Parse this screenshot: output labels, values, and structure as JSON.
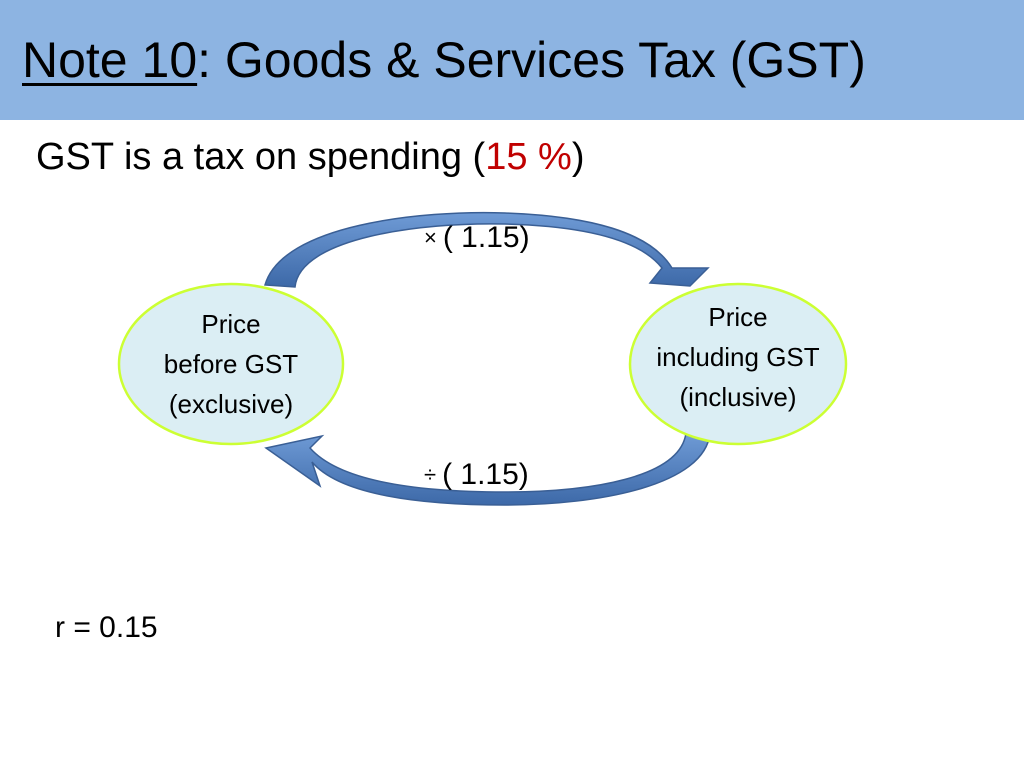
{
  "title": {
    "note": "Note 10",
    "rest": ": Goods & Services Tax (GST)"
  },
  "subtitle": {
    "before": "GST is a tax on spending (",
    "rate": "15 %",
    "after": ")"
  },
  "nodes": {
    "exclusive": {
      "line1": "Price",
      "line2": "before GST",
      "line3": "(exclusive)"
    },
    "inclusive": {
      "line1": "Price",
      "line2": "including GST",
      "line3": "(inclusive)"
    }
  },
  "operations": {
    "multiply": {
      "symbol": "×",
      "value": "( 1.15)"
    },
    "divide": {
      "symbol": "÷",
      "value": "( 1.15)"
    }
  },
  "footer": {
    "r_value": "r = 0.15"
  },
  "colors": {
    "title_bar": "#8db4e2",
    "rate_text": "#c00000",
    "oval_fill": "#dbeef4",
    "oval_stroke": "#ccff33",
    "arrow_fill": "#4f7fbf"
  }
}
